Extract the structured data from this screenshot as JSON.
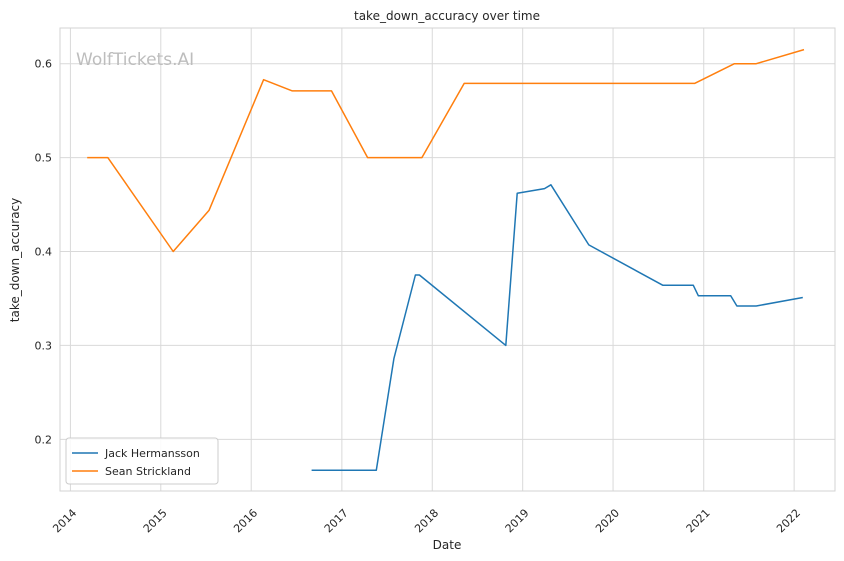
{
  "watermark": "WolfTickets.AI",
  "chart_data": {
    "type": "line",
    "title": "take_down_accuracy over time",
    "xlabel": "Date",
    "ylabel": "take_down_accuracy",
    "x_ticks": [
      "2014",
      "2015",
      "2016",
      "2017",
      "2018",
      "2019",
      "2020",
      "2021",
      "2022"
    ],
    "y_ticks": [
      "0.2",
      "0.3",
      "0.4",
      "0.5",
      "0.6"
    ],
    "xlim": [
      "2013-11-20",
      "2022-06-15"
    ],
    "ylim": [
      0.145,
      0.638
    ],
    "grid": true,
    "legend_position": "lower-left",
    "series": [
      {
        "name": "Jack Hermansson",
        "color": "#1f77b4",
        "points": [
          {
            "x": "2016-09-01",
            "y": 0.167
          },
          {
            "x": "2017-05-20",
            "y": 0.167
          },
          {
            "x": "2017-07-30",
            "y": 0.286
          },
          {
            "x": "2017-10-25",
            "y": 0.375
          },
          {
            "x": "2017-11-10",
            "y": 0.375
          },
          {
            "x": "2018-10-25",
            "y": 0.3
          },
          {
            "x": "2018-12-10",
            "y": 0.462
          },
          {
            "x": "2019-03-30",
            "y": 0.467
          },
          {
            "x": "2019-04-25",
            "y": 0.471
          },
          {
            "x": "2019-09-25",
            "y": 0.407
          },
          {
            "x": "2020-07-20",
            "y": 0.364
          },
          {
            "x": "2020-11-20",
            "y": 0.364
          },
          {
            "x": "2020-12-10",
            "y": 0.353
          },
          {
            "x": "2021-04-20",
            "y": 0.353
          },
          {
            "x": "2021-05-15",
            "y": 0.342
          },
          {
            "x": "2021-08-01",
            "y": 0.342
          },
          {
            "x": "2022-02-05",
            "y": 0.351
          }
        ]
      },
      {
        "name": "Sean Strickland",
        "color": "#ff7f0e",
        "points": [
          {
            "x": "2014-03-10",
            "y": 0.5
          },
          {
            "x": "2014-06-01",
            "y": 0.5
          },
          {
            "x": "2015-02-20",
            "y": 0.4
          },
          {
            "x": "2015-07-15",
            "y": 0.444
          },
          {
            "x": "2016-02-20",
            "y": 0.583
          },
          {
            "x": "2016-06-15",
            "y": 0.571
          },
          {
            "x": "2016-11-20",
            "y": 0.571
          },
          {
            "x": "2017-04-15",
            "y": 0.5
          },
          {
            "x": "2017-11-20",
            "y": 0.5
          },
          {
            "x": "2018-05-10",
            "y": 0.579
          },
          {
            "x": "2020-11-25",
            "y": 0.579
          },
          {
            "x": "2021-05-05",
            "y": 0.6
          },
          {
            "x": "2021-08-01",
            "y": 0.6
          },
          {
            "x": "2022-02-10",
            "y": 0.615
          }
        ]
      }
    ]
  }
}
